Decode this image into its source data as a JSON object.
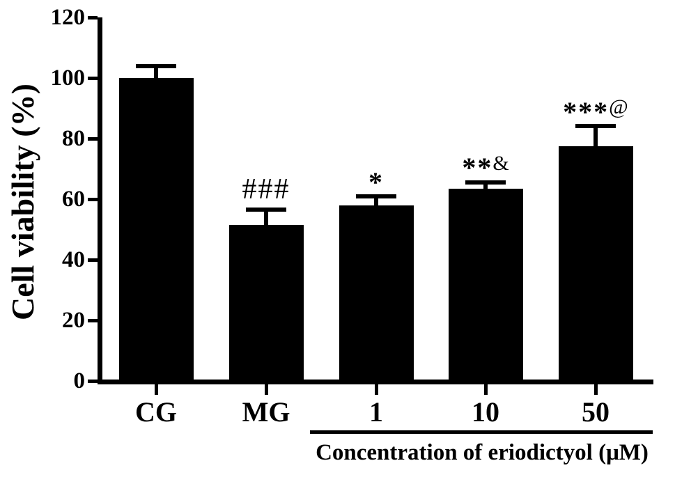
{
  "chart_data": {
    "type": "bar",
    "title": "",
    "ylabel": "Cell viability (%)",
    "xlabel": "Concentration of eriodictyol (μM)",
    "xlabel_applies_to": [
      "1",
      "10",
      "50"
    ],
    "categories": [
      "CG",
      "MG",
      "1",
      "10",
      "50"
    ],
    "values": [
      100,
      51.5,
      58,
      63.5,
      77.5
    ],
    "errors": [
      4.5,
      5.7,
      3.5,
      2.8,
      7.3
    ],
    "annotations": [
      [],
      [
        {
          "text": "###",
          "kind": "hash"
        }
      ],
      [
        {
          "text": "*",
          "kind": "star"
        }
      ],
      [
        {
          "text": "**",
          "kind": "star"
        },
        {
          "text": "&",
          "kind": "symbol"
        }
      ],
      [
        {
          "text": "***",
          "kind": "star"
        },
        {
          "text": "@",
          "kind": "symbol"
        }
      ]
    ],
    "ylim": [
      0,
      120
    ],
    "yticks": [
      0,
      20,
      40,
      60,
      80,
      100,
      120
    ],
    "grid": false,
    "legend": null,
    "bar_color": "#000000",
    "axis_color": "#000000",
    "background": "#ffffff"
  }
}
